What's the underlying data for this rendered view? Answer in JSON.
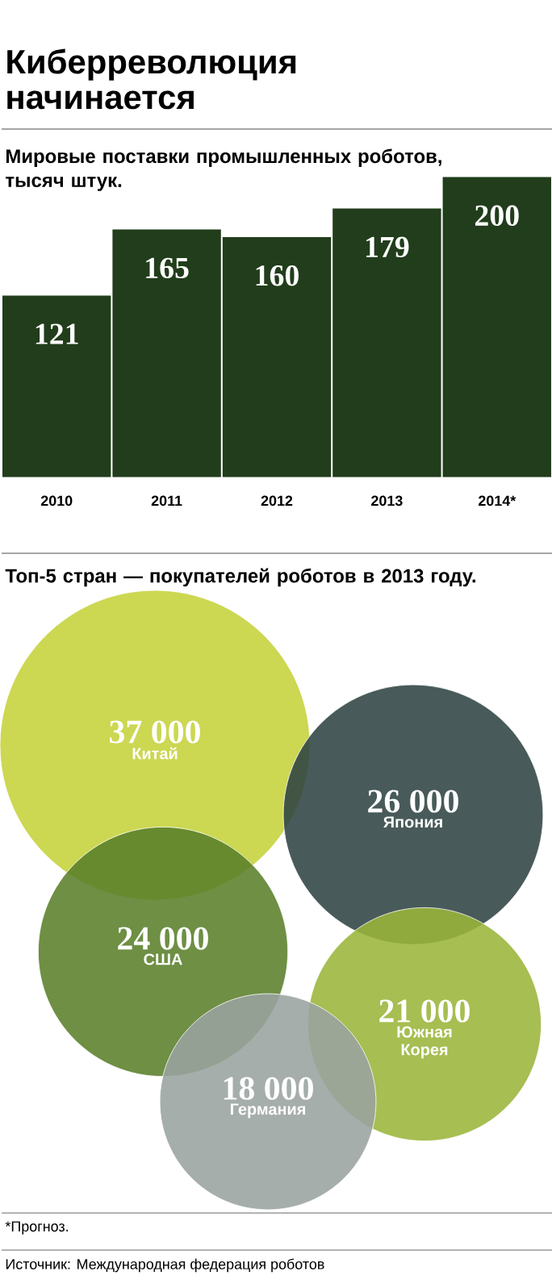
{
  "chart_data": [
    {
      "type": "bar",
      "title": "Киберреволюция начинается",
      "subtitle": "Мировые поставки промышленных роботов, тысяч штук.",
      "categories": [
        "2010",
        "2011",
        "2012",
        "2013",
        "2014*"
      ],
      "values": [
        121,
        165,
        160,
        179,
        200
      ],
      "color": "#213d1b",
      "data_labels": true
    },
    {
      "type": "other",
      "title": "Топ-5 стран — покупателей роботов в 2013 году.",
      "categories": [
        "Китай",
        "Япония",
        "США",
        "Южная Корея",
        "Германия"
      ],
      "values": [
        37000,
        26000,
        24000,
        21000,
        18000
      ],
      "value_labels": [
        "37 000",
        "26 000",
        "24 000",
        "21 000",
        "18 000"
      ],
      "colors": [
        "#c5d23a",
        "#2f4342",
        "#5a7f2a",
        "#9ab53a",
        "#9aa39f"
      ],
      "annotations": [
        "*Прогноз.",
        "Источник: Международная федерация роботов"
      ]
    }
  ]
}
